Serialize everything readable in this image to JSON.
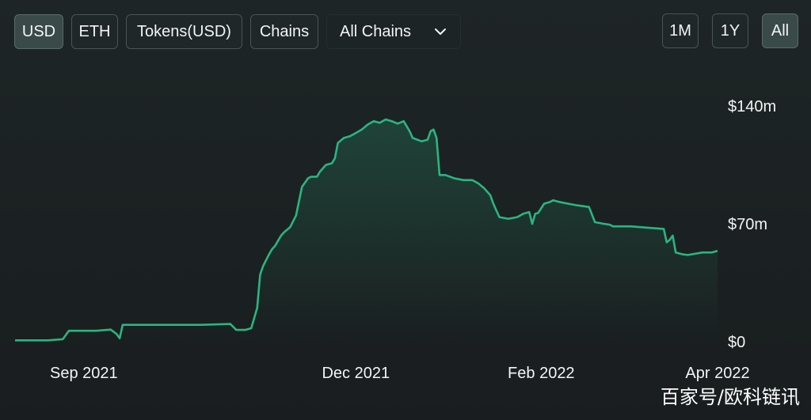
{
  "toolbar": {
    "usd_label": "USD",
    "eth_label": "ETH",
    "tokens_label": "Tokens(USD)",
    "chains_label": "Chains",
    "chain_select_value": "All Chains",
    "chevron_icon": "chevron-down-icon"
  },
  "range": {
    "one_month_label": "1M",
    "one_year_label": "1Y",
    "all_label": "All",
    "selected": "All"
  },
  "colors": {
    "line": "#2bb57f",
    "button_active_bg": "#3a4a49"
  },
  "watermark": "百家号/欧科链讯",
  "chart_data": {
    "type": "area",
    "title": "",
    "xlabel": "",
    "ylabel": "",
    "x_tick_labels": [
      "Sep 2021",
      "Dec 2021",
      "Feb 2022",
      "Apr 2022"
    ],
    "y_tick_labels": [
      "$0",
      "$70m",
      "$140m"
    ],
    "ylim": [
      0,
      140
    ],
    "y_unit": "$m",
    "x_range": [
      "2021-08-09",
      "2022-04-01"
    ],
    "grid": false,
    "legend": "none",
    "series": [
      {
        "x": [
          "2021-08-09",
          "2021-08-20",
          "2021-08-25",
          "2021-08-27",
          "2021-09-05",
          "2021-09-10",
          "2021-09-12",
          "2021-09-13",
          "2021-09-14",
          "2021-09-16",
          "2021-10-10",
          "2021-10-20",
          "2021-10-22",
          "2021-10-25",
          "2021-10-27",
          "2021-10-29",
          "2021-10-30",
          "2021-10-31",
          "2021-11-02",
          "2021-11-03",
          "2021-11-04",
          "2021-11-06",
          "2021-11-07",
          "2021-11-09",
          "2021-11-11",
          "2021-11-13",
          "2021-11-15",
          "2021-11-16",
          "2021-11-18",
          "2021-11-19",
          "2021-11-21",
          "2021-11-23",
          "2021-11-24",
          "2021-11-25",
          "2021-11-27",
          "2021-11-29",
          "2021-12-01",
          "2021-12-03",
          "2021-12-05",
          "2021-12-07",
          "2021-12-09",
          "2021-12-11",
          "2021-12-13",
          "2021-12-15",
          "2021-12-17",
          "2021-12-19",
          "2021-12-20",
          "2021-12-23",
          "2021-12-25",
          "2021-12-26",
          "2021-12-27",
          "2021-12-28",
          "2021-12-29",
          "2021-12-31",
          "2022-01-03",
          "2022-01-06",
          "2022-01-09",
          "2022-01-11",
          "2022-01-13",
          "2022-01-15",
          "2022-01-16",
          "2022-01-18",
          "2022-01-21",
          "2022-01-24",
          "2022-01-26",
          "2022-01-28",
          "2022-01-29",
          "2022-01-30",
          "2022-01-31",
          "2022-02-02",
          "2022-02-04",
          "2022-02-05",
          "2022-02-07",
          "2022-02-10",
          "2022-02-13",
          "2022-02-17",
          "2022-02-19",
          "2022-02-22",
          "2022-02-24",
          "2022-02-25",
          "2022-03-03",
          "2022-03-10",
          "2022-03-14",
          "2022-03-15",
          "2022-03-16",
          "2022-03-17",
          "2022-03-18",
          "2022-03-20",
          "2022-03-22",
          "2022-03-27",
          "2022-03-30",
          "2022-04-01"
        ],
        "values": [
          0.8,
          0.8,
          1.5,
          6.5,
          6.5,
          7.2,
          4.5,
          2.0,
          10.0,
          10.0,
          10.0,
          10.5,
          7.0,
          7.0,
          8.0,
          20.0,
          40.0,
          45.0,
          52.0,
          55.0,
          57.0,
          63.0,
          65.0,
          68.0,
          75.0,
          92.0,
          97.0,
          98.0,
          98.0,
          101.0,
          105.0,
          106.0,
          109.0,
          118.0,
          121.0,
          122.0,
          124.0,
          126.0,
          129.0,
          131.0,
          130.0,
          132.0,
          131.0,
          129.5,
          131.0,
          125.0,
          121.0,
          119.0,
          120.0,
          125.0,
          126.0,
          121.0,
          99.0,
          99.0,
          97.0,
          96.0,
          96.0,
          94.0,
          91.0,
          87.0,
          82.0,
          74.0,
          73.0,
          74.0,
          76.0,
          77.0,
          70.0,
          76.0,
          76.5,
          82.0,
          83.0,
          84.0,
          83.0,
          82.0,
          81.0,
          80.0,
          71.0,
          70.0,
          69.5,
          68.5,
          68.5,
          67.5,
          67.0,
          59.0,
          60.5,
          63.0,
          53.0,
          52.0,
          51.5,
          53.0,
          53.0,
          54.0
        ]
      }
    ]
  }
}
